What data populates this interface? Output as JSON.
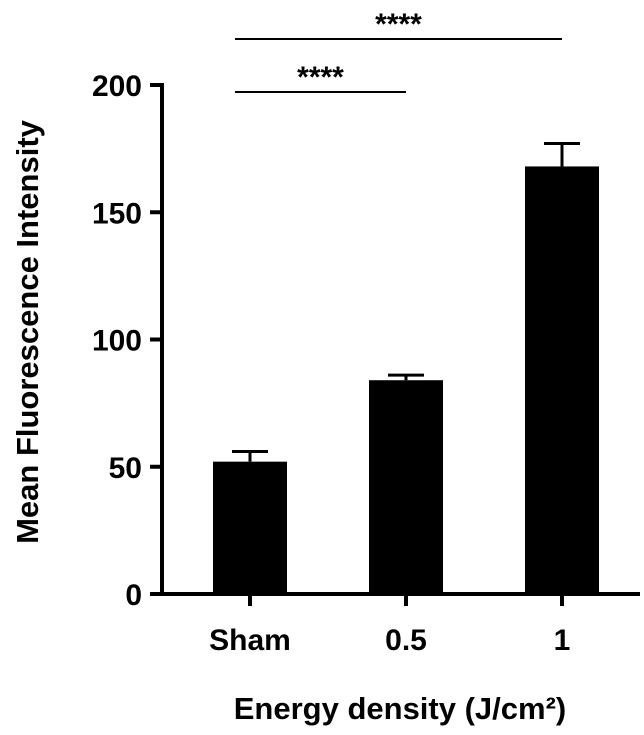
{
  "chart_data": {
    "type": "bar",
    "categories": [
      "Sham",
      "0.5",
      "1"
    ],
    "values": [
      52,
      84,
      168
    ],
    "errors": [
      4,
      2,
      9
    ],
    "title": "",
    "xlabel": "Energy density (J/cm²)",
    "ylabel": "Mean Fluorescence Intensity",
    "ylim": [
      0,
      200
    ],
    "yticks": [
      "0",
      "50",
      "100",
      "150",
      "200"
    ],
    "bar_color": "#000000",
    "grid": false,
    "significance": [
      {
        "from": "Sham",
        "to": "0.5",
        "label": "****"
      },
      {
        "from": "Sham",
        "to": "1",
        "label": "****"
      }
    ]
  }
}
